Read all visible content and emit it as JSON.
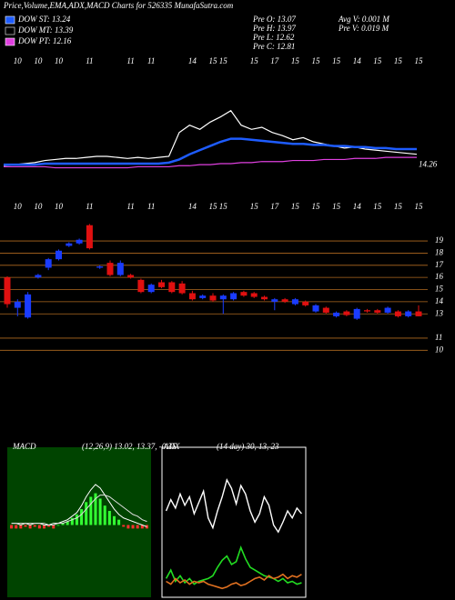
{
  "header": {
    "title": "Price,Volume,EMA,ADX,MACD Charts for 526335 MunafaSutra.com",
    "legend": [
      {
        "label": "DOW ST: 13.24",
        "color": "#1e5cff"
      },
      {
        "label": "DOW MT: 13.39",
        "color": "#000000"
      },
      {
        "label": "DOW PT: 12.16",
        "color": "#e040e0"
      }
    ],
    "stats": [
      "Pre  O: 13.07",
      "Pre  H: 13.97",
      "Pre  L: 12.62",
      "Pre  C: 12.81",
      "Avg V: 0.001 M",
      "Pre  V: 0.019 M"
    ]
  },
  "chart_data": [
    {
      "type": "line",
      "ylim": [
        10,
        24
      ],
      "last_label": 14.26,
      "series": [
        {
          "name": "EMA fast",
          "color": "#ffffff",
          "values": [
            13.3,
            13.4,
            13.5,
            13.6,
            13.8,
            13.9,
            14.0,
            14.0,
            14.1,
            14.2,
            14.2,
            14.1,
            14.0,
            14.1,
            14.0,
            14.1,
            14.2,
            16.5,
            17.2,
            16.8,
            17.5,
            18.0,
            18.6,
            17.2,
            16.8,
            17.0,
            16.5,
            16.2,
            15.8,
            16.0,
            15.6,
            15.4,
            15.2,
            15.0,
            15.1,
            14.9,
            14.8,
            14.7,
            14.6,
            14.5,
            14.4
          ]
        },
        {
          "name": "EMA mid",
          "color": "#1e5cff",
          "values": [
            13.4,
            13.4,
            13.4,
            13.4,
            13.5,
            13.5,
            13.5,
            13.5,
            13.5,
            13.5,
            13.5,
            13.5,
            13.5,
            13.5,
            13.5,
            13.5,
            13.6,
            13.9,
            14.4,
            14.8,
            15.2,
            15.6,
            15.9,
            15.9,
            15.8,
            15.7,
            15.6,
            15.5,
            15.4,
            15.4,
            15.3,
            15.3,
            15.2,
            15.2,
            15.1,
            15.1,
            15.0,
            15.0,
            14.9,
            14.9,
            14.9
          ]
        },
        {
          "name": "EMA slow",
          "color": "#e040e0",
          "values": [
            13.2,
            13.2,
            13.2,
            13.2,
            13.2,
            13.1,
            13.1,
            13.1,
            13.1,
            13.1,
            13.1,
            13.1,
            13.1,
            13.2,
            13.2,
            13.2,
            13.2,
            13.3,
            13.3,
            13.4,
            13.4,
            13.5,
            13.5,
            13.6,
            13.6,
            13.7,
            13.7,
            13.7,
            13.8,
            13.8,
            13.8,
            13.9,
            13.9,
            13.9,
            14.0,
            14.0,
            14.0,
            14.1,
            14.1,
            14.1,
            14.1
          ]
        }
      ]
    },
    {
      "type": "candlestick",
      "ylim": [
        9.5,
        22
      ],
      "yticks": [
        10,
        11,
        13,
        14,
        15,
        16,
        17,
        18,
        19
      ],
      "up_color": "#1a3cff",
      "down_color": "#e01010",
      "grid_color": "#b06a20",
      "categories": [
        null,
        "10",
        null,
        "10",
        null,
        "10",
        null,
        null,
        "11",
        null,
        null,
        null,
        "11",
        null,
        "11",
        null,
        null,
        null,
        "14",
        null,
        "15",
        "15",
        null,
        null,
        "15",
        null,
        "17",
        null,
        "15",
        null,
        "15",
        null,
        "15",
        null,
        "14",
        null,
        "15",
        null,
        "15",
        null,
        "15"
      ],
      "open": [
        16.0,
        13.5,
        12.7,
        16.0,
        16.8,
        17.5,
        18.6,
        18.8,
        20.3,
        16.8,
        17.2,
        16.2,
        16.2,
        15.8,
        14.8,
        15.6,
        15.6,
        15.5,
        14.7,
        14.3,
        14.5,
        14.2,
        14.2,
        14.8,
        14.7,
        14.4,
        14.0,
        14.2,
        13.8,
        14.0,
        13.2,
        13.5,
        12.8,
        13.2,
        12.6,
        13.3,
        13.3,
        13.1,
        13.2,
        12.8,
        13.2
      ],
      "high": [
        16.1,
        14.2,
        14.8,
        16.3,
        17.6,
        18.3,
        18.9,
        19.2,
        20.4,
        17.0,
        17.4,
        17.4,
        16.3,
        15.9,
        15.5,
        15.8,
        15.7,
        15.7,
        14.9,
        14.6,
        14.7,
        14.6,
        14.8,
        14.9,
        14.8,
        14.5,
        14.3,
        14.3,
        14.3,
        14.1,
        13.8,
        13.6,
        13.2,
        13.3,
        13.5,
        13.4,
        13.4,
        13.6,
        13.3,
        13.3,
        13.7
      ],
      "low": [
        13.5,
        12.8,
        12.6,
        15.9,
        16.6,
        17.4,
        18.5,
        18.7,
        18.3,
        16.7,
        16.1,
        16.1,
        15.9,
        14.7,
        14.7,
        15.1,
        14.7,
        14.6,
        14.1,
        14.2,
        14.0,
        13.0,
        14.1,
        14.4,
        14.3,
        14.1,
        13.3,
        13.9,
        13.7,
        13.6,
        13.1,
        13.0,
        12.7,
        12.8,
        12.5,
        13.1,
        13.0,
        13.0,
        12.7,
        12.7,
        12.8
      ],
      "close": [
        13.8,
        14.0,
        14.6,
        16.2,
        17.5,
        18.2,
        18.8,
        19.1,
        18.4,
        16.9,
        16.2,
        17.2,
        16.0,
        14.8,
        15.4,
        15.2,
        14.8,
        14.7,
        14.2,
        14.5,
        14.1,
        14.5,
        14.7,
        14.5,
        14.4,
        14.2,
        14.2,
        14.0,
        14.2,
        13.7,
        13.7,
        13.1,
        13.1,
        12.9,
        13.4,
        13.2,
        13.1,
        13.5,
        12.8,
        13.2,
        12.8
      ]
    },
    {
      "type": "macd",
      "title": "MACD",
      "params": "(12,26,9) 13.02, 13.37, -0.35",
      "ylim": [
        -4,
        4
      ],
      "series": [
        {
          "name": "MACD",
          "color": "#ffffff",
          "values": [
            0.1,
            0.1,
            0.0,
            0.1,
            0.0,
            0.1,
            0.1,
            0.0,
            0.0,
            0.1,
            0.1,
            0.2,
            0.3,
            0.5,
            0.7,
            1.1,
            1.6,
            2.0,
            2.3,
            2.1,
            1.7,
            1.3,
            0.9,
            0.6,
            0.4,
            0.3,
            0.2,
            0.1,
            0.0,
            -0.1
          ]
        },
        {
          "name": "Signal",
          "color": "#dddddd",
          "values": [
            0.1,
            0.1,
            0.1,
            0.1,
            0.1,
            0.1,
            0.1,
            0.1,
            0.0,
            0.0,
            0.1,
            0.1,
            0.2,
            0.3,
            0.4,
            0.6,
            0.9,
            1.2,
            1.5,
            1.7,
            1.7,
            1.6,
            1.4,
            1.2,
            1.0,
            0.8,
            0.6,
            0.5,
            0.3,
            0.2
          ]
        }
      ],
      "histogram": [
        -0.2,
        -0.2,
        -0.2,
        -0.1,
        -0.2,
        -0.1,
        -0.2,
        -0.2,
        -0.1,
        -0.2,
        0.0,
        0.1,
        0.2,
        0.4,
        0.6,
        0.9,
        1.3,
        1.6,
        1.8,
        1.5,
        1.1,
        0.8,
        0.5,
        0.3,
        -0.1,
        -0.2,
        -0.2,
        -0.2,
        -0.2,
        -0.2
      ],
      "pos_color": "#33ff33",
      "neg_color": "#ff3030"
    },
    {
      "type": "adx",
      "title": "ADX",
      "params": "(14 day) 30, 13, 23",
      "ylim": [
        0,
        100
      ],
      "series": [
        {
          "name": "ADX",
          "color": "#ffffff",
          "values": [
            60,
            68,
            62,
            72,
            64,
            70,
            58,
            66,
            74,
            55,
            48,
            60,
            70,
            82,
            76,
            65,
            78,
            72,
            60,
            52,
            58,
            70,
            64,
            50,
            45,
            52,
            60,
            55,
            62,
            58
          ]
        },
        {
          "name": "+DI",
          "color": "#22dd22",
          "values": [
            12,
            18,
            10,
            14,
            9,
            12,
            8,
            10,
            11,
            12,
            14,
            20,
            25,
            28,
            22,
            24,
            34,
            26,
            20,
            18,
            16,
            14,
            13,
            12,
            10,
            12,
            9,
            10,
            8,
            9
          ]
        },
        {
          "name": "-DI",
          "color": "#e07020",
          "values": [
            10,
            8,
            12,
            9,
            11,
            8,
            10,
            9,
            10,
            8,
            7,
            6,
            5,
            6,
            8,
            9,
            7,
            8,
            10,
            12,
            13,
            11,
            14,
            12,
            13,
            15,
            12,
            14,
            13,
            15
          ]
        }
      ]
    }
  ]
}
